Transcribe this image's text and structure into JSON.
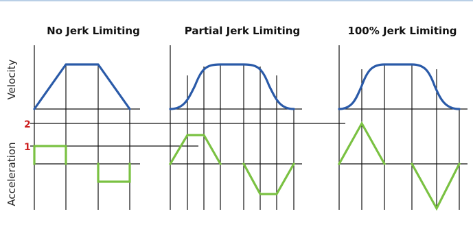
{
  "panels": [
    {
      "title": "No Jerk Limiting"
    },
    {
      "title": "Partial Jerk Limiting"
    },
    {
      "title": "100% Jerk Limiting"
    }
  ],
  "axes": {
    "velocity_label": "Velocity",
    "acceleration_label": "Acceleration"
  },
  "levels": [
    "2",
    "1"
  ],
  "colors": {
    "top_rule": "#b9cfe6",
    "velocity_curve": "#2a5aa8",
    "acceleration_curve": "#7ac142",
    "level_labels": "#cc1f1f"
  }
}
